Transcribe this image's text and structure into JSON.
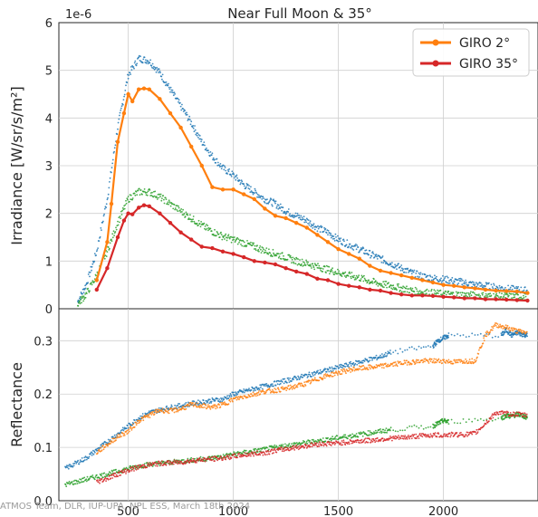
{
  "chart_data": [
    {
      "type": "line",
      "title": "Near Full Moon & 35°",
      "ylabel": "Irradiance [W/sr/s/m²]",
      "offset_text": "1e-6",
      "xlim": [
        170,
        2450
      ],
      "ylim": [
        0,
        6
      ],
      "yticks": [
        "0",
        "1",
        "2",
        "3",
        "4",
        "5",
        "6"
      ],
      "grid": true,
      "legend_position": "top-right",
      "series": [
        {
          "name": "GIRO 2°",
          "color": "#ff7f0e",
          "x": [
            350,
            400,
            420,
            450,
            480,
            500,
            520,
            550,
            575,
            600,
            650,
            700,
            750,
            800,
            850,
            900,
            950,
            1000,
            1050,
            1100,
            1150,
            1200,
            1250,
            1300,
            1350,
            1400,
            1450,
            1500,
            1550,
            1600,
            1650,
            1700,
            1750,
            1800,
            1850,
            1900,
            1950,
            2000,
            2050,
            2100,
            2150,
            2200,
            2250,
            2300,
            2350,
            2400
          ],
          "y": [
            0.6,
            1.4,
            2.2,
            3.5,
            4.1,
            4.5,
            4.35,
            4.6,
            4.62,
            4.6,
            4.4,
            4.1,
            3.8,
            3.4,
            3.0,
            2.55,
            2.5,
            2.5,
            2.4,
            2.3,
            2.1,
            1.95,
            1.9,
            1.8,
            1.7,
            1.55,
            1.4,
            1.25,
            1.15,
            1.05,
            0.9,
            0.8,
            0.75,
            0.7,
            0.65,
            0.6,
            0.55,
            0.5,
            0.48,
            0.45,
            0.43,
            0.4,
            0.38,
            0.37,
            0.36,
            0.33
          ]
        },
        {
          "name": "GIRO 35°",
          "color": "#d62728",
          "x": [
            350,
            400,
            450,
            480,
            500,
            520,
            550,
            575,
            600,
            650,
            700,
            750,
            800,
            850,
            900,
            950,
            1000,
            1050,
            1100,
            1150,
            1200,
            1250,
            1300,
            1350,
            1400,
            1450,
            1500,
            1550,
            1600,
            1650,
            1700,
            1750,
            1800,
            1850,
            1900,
            1950,
            2000,
            2050,
            2100,
            2150,
            2200,
            2250,
            2300,
            2350,
            2400
          ],
          "y": [
            0.4,
            0.85,
            1.5,
            1.85,
            2.0,
            1.98,
            2.12,
            2.17,
            2.15,
            2.0,
            1.8,
            1.6,
            1.45,
            1.3,
            1.27,
            1.2,
            1.15,
            1.08,
            1.0,
            0.97,
            0.93,
            0.85,
            0.78,
            0.73,
            0.63,
            0.6,
            0.52,
            0.48,
            0.45,
            0.4,
            0.38,
            0.33,
            0.3,
            0.28,
            0.28,
            0.27,
            0.25,
            0.24,
            0.22,
            0.22,
            0.2,
            0.2,
            0.19,
            0.18,
            0.17
          ]
        },
        {
          "color": "#1f77b4",
          "x": [
            260,
            300,
            350,
            400,
            450,
            500,
            550,
            600,
            650,
            700,
            750,
            800,
            850,
            900,
            950,
            1000,
            1050,
            1100,
            1150,
            1200,
            1250,
            1300,
            1350,
            1400,
            1450,
            1500,
            1550,
            1600,
            1650,
            1700,
            1750,
            1800,
            1850,
            1900,
            1950,
            2000,
            2050,
            2100,
            2150,
            2200,
            2250,
            2300,
            2350,
            2400
          ],
          "y": [
            0.15,
            0.5,
            1.2,
            2.3,
            3.8,
            4.9,
            5.25,
            5.2,
            4.95,
            4.6,
            4.25,
            3.9,
            3.5,
            3.2,
            2.95,
            2.8,
            2.6,
            2.45,
            2.3,
            2.2,
            2.05,
            1.95,
            1.85,
            1.7,
            1.6,
            1.45,
            1.35,
            1.25,
            1.15,
            1.05,
            0.95,
            0.85,
            0.75,
            0.68,
            0.64,
            0.62,
            0.58,
            0.55,
            0.5,
            0.48,
            0.45,
            0.42,
            0.4,
            0.38
          ]
        },
        {
          "color": "#2ca02c",
          "x": [
            260,
            300,
            350,
            400,
            450,
            500,
            550,
            600,
            650,
            700,
            750,
            800,
            850,
            900,
            950,
            1000,
            1050,
            1100,
            1150,
            1200,
            1250,
            1300,
            1350,
            1400,
            1450,
            1500,
            1550,
            1600,
            1650,
            1700,
            1750,
            1800,
            1850,
            1900,
            1950,
            2000,
            2050,
            2100,
            2150,
            2200,
            2250,
            2300,
            2350,
            2400
          ],
          "y": [
            0.1,
            0.3,
            0.7,
            1.2,
            1.8,
            2.3,
            2.45,
            2.45,
            2.35,
            2.2,
            2.05,
            1.9,
            1.75,
            1.62,
            1.52,
            1.45,
            1.38,
            1.3,
            1.22,
            1.15,
            1.08,
            1.0,
            0.95,
            0.88,
            0.82,
            0.76,
            0.7,
            0.65,
            0.58,
            0.52,
            0.48,
            0.43,
            0.38,
            0.35,
            0.33,
            0.31,
            0.3,
            0.29,
            0.28,
            0.27,
            0.26,
            0.26,
            0.25,
            0.25
          ]
        }
      ]
    },
    {
      "type": "line",
      "xlabel": "",
      "ylabel": "Reflectance",
      "xlim": [
        170,
        2450
      ],
      "ylim": [
        0,
        0.36
      ],
      "xticks": [
        "500",
        "1000",
        "1500",
        "2000"
      ],
      "yticks": [
        "0.0",
        "0.1",
        "0.2",
        "0.3"
      ],
      "grid": true,
      "series": [
        {
          "color": "#ff7f0e",
          "x": [
            350,
            400,
            450,
            500,
            550,
            600,
            650,
            700,
            750,
            800,
            850,
            900,
            950,
            1000,
            1050,
            1100,
            1150,
            1200,
            1250,
            1300,
            1350,
            1400,
            1450,
            1500,
            1550,
            1600,
            1650,
            1700,
            1750,
            1800,
            1850,
            1900,
            1950,
            2000,
            2050,
            2100,
            2150,
            2200,
            2250,
            2300,
            2350,
            2400
          ],
          "y": [
            0.09,
            0.105,
            0.12,
            0.13,
            0.15,
            0.16,
            0.17,
            0.168,
            0.172,
            0.18,
            0.178,
            0.175,
            0.18,
            0.19,
            0.195,
            0.2,
            0.205,
            0.207,
            0.21,
            0.215,
            0.22,
            0.228,
            0.235,
            0.24,
            0.245,
            0.248,
            0.25,
            0.252,
            0.255,
            0.258,
            0.26,
            0.262,
            0.262,
            0.262,
            0.26,
            0.262,
            0.262,
            0.31,
            0.33,
            0.325,
            0.318,
            0.315
          ]
        },
        {
          "color": "#d62728",
          "x": [
            350,
            400,
            450,
            500,
            550,
            600,
            650,
            700,
            750,
            800,
            850,
            900,
            950,
            1000,
            1050,
            1100,
            1150,
            1200,
            1250,
            1300,
            1350,
            1400,
            1450,
            1500,
            1550,
            1600,
            1650,
            1700,
            1750,
            1800,
            1850,
            1900,
            1950,
            2000,
            2050,
            2100,
            2150,
            2200,
            2250,
            2300,
            2350,
            2400
          ],
          "y": [
            0.035,
            0.042,
            0.05,
            0.057,
            0.063,
            0.067,
            0.07,
            0.071,
            0.072,
            0.075,
            0.077,
            0.078,
            0.08,
            0.083,
            0.086,
            0.088,
            0.09,
            0.094,
            0.097,
            0.1,
            0.103,
            0.106,
            0.107,
            0.108,
            0.11,
            0.112,
            0.113,
            0.115,
            0.117,
            0.118,
            0.12,
            0.122,
            0.123,
            0.123,
            0.124,
            0.124,
            0.126,
            0.145,
            0.165,
            0.163,
            0.162,
            0.16
          ]
        },
        {
          "color": "#1f77b4",
          "x": [
            200,
            250,
            300,
            350,
            400,
            450,
            500,
            550,
            600,
            650,
            700,
            750,
            800,
            850,
            900,
            950,
            1000,
            1050,
            1100,
            1150,
            1200,
            1250,
            1300,
            1350,
            1400,
            1450,
            1500,
            1550,
            1600,
            1650,
            1700,
            1750,
            1950,
            1975,
            2000,
            2025,
            2275,
            2300,
            2325,
            2350,
            2375,
            2400
          ],
          "y": [
            0.06,
            0.07,
            0.08,
            0.095,
            0.11,
            0.125,
            0.14,
            0.155,
            0.165,
            0.17,
            0.175,
            0.178,
            0.182,
            0.185,
            0.188,
            0.19,
            0.2,
            0.205,
            0.21,
            0.215,
            0.22,
            0.225,
            0.23,
            0.235,
            0.24,
            0.245,
            0.25,
            0.255,
            0.26,
            0.265,
            0.27,
            0.278,
            0.29,
            0.3,
            0.305,
            0.31,
            0.31,
            0.32,
            0.31,
            0.315,
            0.312,
            0.31
          ]
        },
        {
          "color": "#2ca02c",
          "x": [
            200,
            250,
            300,
            350,
            400,
            450,
            500,
            550,
            600,
            650,
            700,
            750,
            800,
            850,
            900,
            950,
            1000,
            1050,
            1100,
            1150,
            1200,
            1250,
            1300,
            1350,
            1400,
            1450,
            1500,
            1550,
            1600,
            1650,
            1700,
            1750,
            1950,
            1975,
            2000,
            2025,
            2275,
            2300,
            2325,
            2350,
            2375,
            2400
          ],
          "y": [
            0.03,
            0.035,
            0.04,
            0.045,
            0.05,
            0.055,
            0.06,
            0.065,
            0.068,
            0.07,
            0.072,
            0.074,
            0.076,
            0.078,
            0.08,
            0.083,
            0.087,
            0.09,
            0.093,
            0.096,
            0.1,
            0.103,
            0.106,
            0.109,
            0.112,
            0.115,
            0.118,
            0.121,
            0.124,
            0.127,
            0.13,
            0.133,
            0.14,
            0.145,
            0.15,
            0.148,
            0.155,
            0.16,
            0.158,
            0.162,
            0.16,
            0.155
          ]
        }
      ]
    }
  ],
  "credit": "ATMOS Team, DLR, IUP-UPA, NPL ESS, March 18th 2024"
}
